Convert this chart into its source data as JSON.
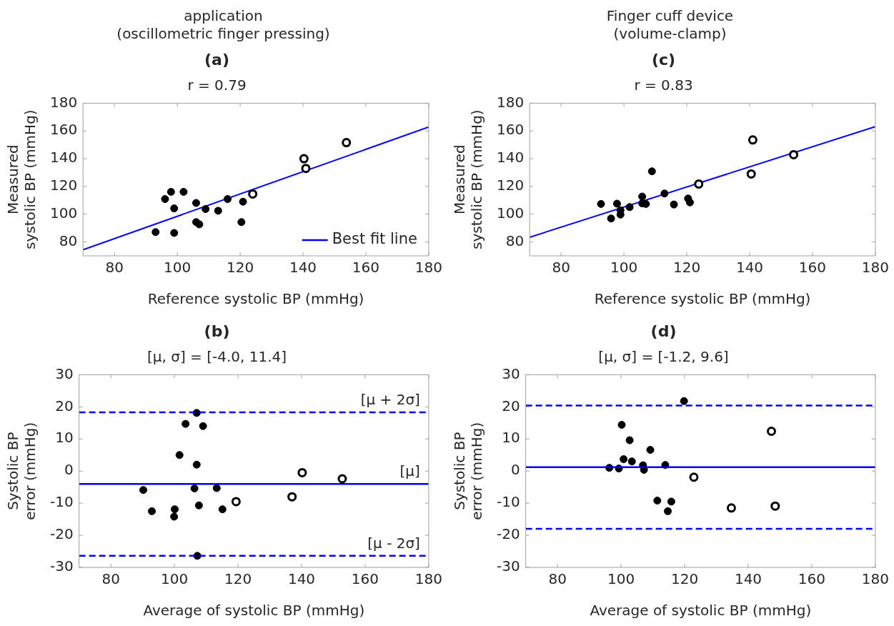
{
  "chart_data": [
    {
      "type": "scatter",
      "annotations": [
        "application",
        "(oscillometric finger pressing)"
      ],
      "title": "(a)",
      "subtitle": "r = 0.79",
      "xlabel": "Reference systolic BP (mmHg)",
      "ylabel": "Measured\nsystolic BP (mmHg)",
      "xlim": [
        70,
        180
      ],
      "xticks": [
        80,
        100,
        120,
        140,
        160,
        180
      ],
      "ylim": [
        70,
        180
      ],
      "yticks": [
        80,
        100,
        120,
        140,
        160,
        180
      ],
      "grid": false,
      "legend": "bottom right",
      "series": [
        {
          "color": "#000000",
          "marker": "circle",
          "x": [
            93.1,
            96.1,
            98.0,
            102.0,
            99.0,
            99.0,
            106.0,
            106.0,
            107.0,
            109.0,
            113.0,
            116.0,
            120.9,
            120.4
          ],
          "values": [
            87.1,
            110.9,
            116.1,
            116.1,
            104.2,
            86.5,
            108.1,
            94.3,
            92.7,
            103.7,
            102.5,
            110.9,
            109.0,
            94.3
          ]
        },
        {
          "color": "#000000",
          "marker": "circle-open",
          "x": [
            124.0,
            140.3,
            140.9,
            153.8
          ],
          "values": [
            114.6,
            140.0,
            133.0,
            151.6
          ]
        },
        {
          "type": "line",
          "name": "Best fit line",
          "color": "#0000ff",
          "marker": "none",
          "x": [
            70,
            180
          ],
          "values": [
            74.4,
            162.8
          ]
        }
      ]
    },
    {
      "type": "scatter",
      "title": "(b)",
      "subtitle": "[μ, σ] = [-4.0, 11.4]",
      "xlabel": "Average of systolic BP (mmHg)",
      "ylabel": "Systolic BP\nerror (mmHg)",
      "xlim": [
        70,
        180
      ],
      "xticks": [
        80,
        100,
        120,
        140,
        160,
        180
      ],
      "ylim": [
        -30,
        30
      ],
      "yticks": [
        -30,
        -20,
        -10,
        0,
        10,
        20,
        30
      ],
      "grid": false,
      "series": [
        {
          "color": "#000000",
          "marker": "circle",
          "x": [
            90.2,
            92.9,
            100.1,
            99.9,
            101.6,
            103.5,
            107.0,
            109.0,
            107.0,
            106.3,
            107.7,
            113.3,
            115.1,
            107.2
          ],
          "values": [
            -5.9,
            -12.5,
            -11.9,
            -14.2,
            5.0,
            14.7,
            18.1,
            14.0,
            2.0,
            -5.4,
            -10.7,
            -5.3,
            -11.9,
            -26.4
          ]
        },
        {
          "color": "#000000",
          "marker": "circle-open",
          "x": [
            119.4,
            137.0,
            140.2,
            152.8
          ],
          "values": [
            -9.5,
            -8.0,
            -0.5,
            -2.4
          ]
        }
      ],
      "ref_lines": [
        {
          "axis": "y",
          "value": 18.3,
          "label": "[μ + 2σ]",
          "color": "#0000ff",
          "line_style": "dashed"
        },
        {
          "axis": "y",
          "value": -4.0,
          "label": "[μ]",
          "color": "#0000ff",
          "line_style": "solid"
        },
        {
          "axis": "y",
          "value": -26.4,
          "label": "[μ - 2σ]",
          "color": "#0000ff",
          "line_style": "dashed"
        }
      ]
    },
    {
      "type": "scatter",
      "annotations": [
        "Finger cuff device",
        "(volume-clamp)"
      ],
      "title": "(c)",
      "subtitle": "r = 0.83",
      "xlabel": "Reference systolic BP (mmHg)",
      "ylabel": "Measured\nsystolic BP (mmHg)",
      "xlim": [
        70,
        180
      ],
      "xticks": [
        80,
        100,
        120,
        140,
        160,
        180
      ],
      "ylim": [
        70,
        180
      ],
      "yticks": [
        80,
        100,
        120,
        140,
        160,
        180
      ],
      "grid": false,
      "series": [
        {
          "color": "#000000",
          "marker": "circle",
          "x": [
            92.7,
            95.9,
            97.8,
            98.9,
            98.9,
            101.8,
            105.8,
            105.8,
            107.0,
            108.9,
            112.9,
            115.9,
            120.4,
            121.0
          ],
          "values": [
            107.4,
            96.9,
            107.6,
            102.8,
            99.7,
            105.1,
            112.7,
            107.8,
            107.4,
            130.9,
            114.9,
            107.0,
            111.3,
            108.5
          ]
        },
        {
          "color": "#000000",
          "marker": "circle-open",
          "x": [
            123.8,
            141.0,
            140.5,
            154.0
          ],
          "values": [
            121.7,
            153.5,
            129.0,
            142.9
          ]
        },
        {
          "type": "line",
          "color": "#0000ff",
          "marker": "none",
          "x": [
            70,
            180
          ],
          "values": [
            83.4,
            163.1
          ]
        }
      ]
    },
    {
      "type": "scatter",
      "title": "(d)",
      "subtitle": "[μ, σ] = [-1.2, 9.6]",
      "xlabel": "Average of systolic BP (mmHg)",
      "ylabel": "Systolic BP\nerror (mmHg)",
      "xlim": [
        70,
        180
      ],
      "xticks": [
        80,
        100,
        120,
        140,
        160,
        180
      ],
      "ylim": [
        -30,
        30
      ],
      "yticks": [
        -30,
        -20,
        -10,
        0,
        10,
        20,
        30
      ],
      "grid": false,
      "series": [
        {
          "color": "#000000",
          "marker": "circle",
          "x": [
            96.3,
            99.3,
            100.2,
            100.8,
            102.7,
            103.4,
            106.9,
            107.2,
            109.2,
            111.4,
            113.9,
            114.7,
            115.8,
            119.8
          ],
          "values": [
            1.0,
            0.8,
            14.4,
            3.7,
            9.6,
            3.0,
            1.8,
            0.4,
            6.6,
            -9.2,
            1.9,
            -12.5,
            -9.5,
            21.8
          ]
        },
        {
          "color": "#000000",
          "marker": "circle-open",
          "x": [
            122.9,
            134.7,
            147.3,
            148.5
          ],
          "values": [
            -1.9,
            -11.5,
            12.4,
            -10.9
          ]
        }
      ],
      "ref_lines": [
        {
          "axis": "y",
          "value": 20.4,
          "color": "#0000ff",
          "line_style": "dashed"
        },
        {
          "axis": "y",
          "value": 1.2,
          "color": "#0000ff",
          "line_style": "solid"
        },
        {
          "axis": "y",
          "value": -18.0,
          "color": "#0000ff",
          "line_style": "dashed"
        }
      ]
    }
  ]
}
